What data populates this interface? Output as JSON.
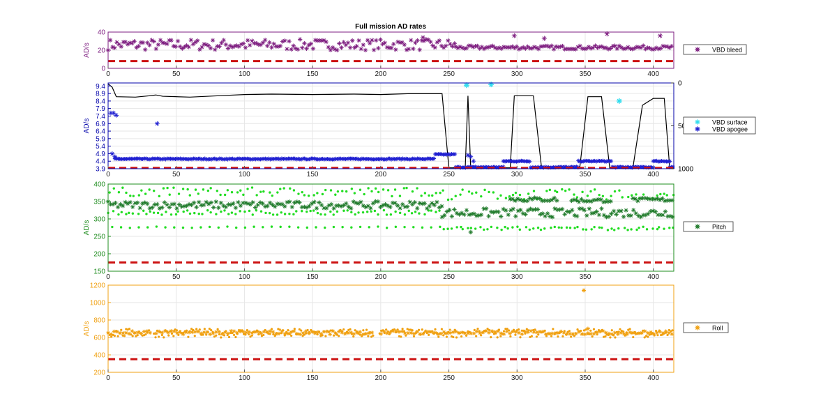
{
  "figure": {
    "title": "Full mission AD rates",
    "xticks": [
      0,
      50,
      100,
      150,
      200,
      250,
      300,
      350,
      400
    ]
  },
  "colors": {
    "purple": "#7e1e80",
    "navy": "#0000aa",
    "blue": "#1f1fd1",
    "cyan": "#33ddee",
    "green": "#1e8c1e",
    "lightgreen": "#22dd22",
    "darkgreen": "#1f7a2a",
    "orange": "#f0a010",
    "refline": "#cc1111",
    "black": "#000000"
  },
  "chart_data": [
    {
      "type": "scatter",
      "panel": "bleed",
      "ylabel": "AD/s",
      "xlim": [
        0,
        415
      ],
      "ylim": [
        0,
        40
      ],
      "yticks": [
        0,
        20,
        40
      ],
      "grid": true,
      "legend_position": "right",
      "series": [
        {
          "name": "VBD bleed",
          "marker": "*",
          "color": "#7e1e80",
          "y_ranges": [
            [
              0,
              195,
              20,
              32
            ],
            [
              195,
              255,
              20,
              32
            ],
            [
              255,
              415,
              21,
              25
            ]
          ],
          "outliers": [
            [
              298,
              36
            ],
            [
              366,
              38
            ],
            [
              405,
              36
            ],
            [
              231,
              34
            ],
            [
              320,
              33
            ]
          ]
        }
      ],
      "reference_line": {
        "y": 8,
        "style": "dashed"
      }
    },
    {
      "type": "line+scatter",
      "panel": "vbd",
      "ylabel": "AD/s",
      "xlim": [
        0,
        415
      ],
      "ylim": [
        3.9,
        9.6
      ],
      "yticks": [
        3.9,
        4.4,
        4.9,
        5.4,
        5.9,
        6.4,
        6.9,
        7.4,
        7.9,
        8.4,
        8.9,
        9.4
      ],
      "y2lim": [
        0,
        1000
      ],
      "y2ticks_shown": [
        "0",
        "50",
        "1000"
      ],
      "grid": true,
      "legend_position": "right",
      "series": [
        {
          "name": "VBD surface",
          "marker": "*",
          "color": "#33ddee",
          "points": [
            [
              263,
              9.45
            ],
            [
              281,
              9.5
            ],
            [
              375,
              8.4
            ]
          ]
        },
        {
          "name": "VBD apogee",
          "marker": "*",
          "color": "#1f1fd1",
          "points": [
            [
              2,
              7.6
            ],
            [
              4,
              7.6
            ],
            [
              6,
              7.45
            ],
            [
              36,
              6.9
            ],
            [
              3,
              4.9
            ],
            [
              5,
              4.7
            ],
            [
              264,
              4.8
            ],
            [
              266,
              4.7
            ],
            [
              268,
              4.4
            ]
          ],
          "segments": [
            [
              5,
              240,
              4.55
            ],
            [
              240,
              255,
              4.85
            ],
            [
              255,
              290,
              4.0
            ],
            [
              290,
              310,
              4.4
            ],
            [
              310,
              345,
              4.0
            ],
            [
              345,
              370,
              4.4
            ],
            [
              370,
              400,
              4.0
            ],
            [
              400,
              412,
              4.4
            ],
            [
              412,
              415,
              4.0
            ]
          ]
        },
        {
          "name": "depth trace",
          "color": "#000000",
          "points": [
            [
              0,
              10
            ],
            [
              3,
              50
            ],
            [
              6,
              160
            ],
            [
              20,
              165
            ],
            [
              30,
              150
            ],
            [
              35,
              140
            ],
            [
              40,
              155
            ],
            [
              60,
              165
            ],
            [
              80,
              150
            ],
            [
              100,
              135
            ],
            [
              120,
              130
            ],
            [
              150,
              135
            ],
            [
              180,
              130
            ],
            [
              200,
              135
            ],
            [
              220,
              125
            ],
            [
              245,
              125
            ],
            [
              250,
              990
            ],
            [
              262,
              990
            ],
            [
              264,
              150
            ],
            [
              266,
              990
            ],
            [
              295,
              990
            ],
            [
              298,
              150
            ],
            [
              312,
              150
            ],
            [
              318,
              990
            ],
            [
              346,
              990
            ],
            [
              352,
              160
            ],
            [
              362,
              160
            ],
            [
              368,
              990
            ],
            [
              385,
              990
            ],
            [
              392,
              260
            ],
            [
              400,
              180
            ],
            [
              408,
              180
            ],
            [
              412,
              990
            ],
            [
              415,
              990
            ]
          ]
        }
      ],
      "reference_line": {
        "y": 3.95,
        "style": "dashed"
      }
    },
    {
      "type": "scatter",
      "panel": "pitch",
      "ylabel": "AD/s",
      "xlim": [
        0,
        415
      ],
      "ylim": [
        150,
        400
      ],
      "yticks": [
        150,
        200,
        250,
        300,
        350,
        400
      ],
      "grid": true,
      "legend_position": "right",
      "series": [
        {
          "name": "Pitch",
          "marker": "*",
          "color": "#1f7a2a",
          "bands": [
            [
              0,
              245,
              330,
              350
            ],
            [
              245,
              415,
              305,
              330
            ],
            [
              295,
              330,
              350,
              362
            ],
            [
              340,
              370,
              348,
              358
            ],
            [
              385,
              415,
              350,
              360
            ]
          ]
        },
        {
          "name": "",
          "marker": ".",
          "color": "#22dd22",
          "bands": [
            [
              0,
              245,
              365,
              390
            ],
            [
              0,
              245,
              312,
              325
            ],
            [
              245,
              415,
              268,
              278
            ],
            [
              245,
              415,
              355,
              385
            ]
          ],
          "sparse": [
            [
              0,
              245,
              276
            ]
          ]
        }
      ],
      "reference_line": {
        "y": 175,
        "style": "dashed"
      }
    },
    {
      "type": "scatter",
      "panel": "roll",
      "ylabel": "AD/s",
      "xlim": [
        0,
        415
      ],
      "ylim": [
        200,
        1200
      ],
      "yticks": [
        200,
        400,
        600,
        800,
        1000,
        1200
      ],
      "grid": true,
      "legend_position": "right",
      "series": [
        {
          "name": "Roll",
          "marker": "*",
          "color": "#f0a010",
          "y_band": [
            600,
            700
          ],
          "outliers": [
            [
              349,
              1140
            ],
            [
              352,
              700
            ]
          ]
        }
      ],
      "reference_line": {
        "y": 350,
        "style": "dashed"
      }
    }
  ]
}
